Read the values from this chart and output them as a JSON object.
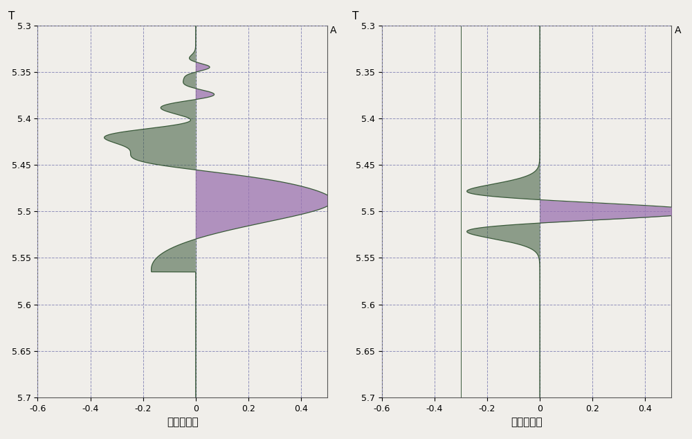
{
  "ylim": [
    5.3,
    5.7
  ],
  "xlim": [
    -0.6,
    0.5
  ],
  "yticks": [
    5.3,
    5.35,
    5.4,
    5.45,
    5.5,
    5.55,
    5.6,
    5.65,
    5.7
  ],
  "xticks": [
    -0.6,
    -0.4,
    -0.2,
    0.0,
    0.2,
    0.4
  ],
  "xtick_labels": [
    "-0.6",
    "-0.4",
    "-0.2",
    "0",
    "0.2",
    "0.4"
  ],
  "xlabel_left": "校正前波形",
  "xlabel_right": "校正后波形",
  "ylabel": "T",
  "x_unit": "A",
  "bg_color": "#f0eeea",
  "plot_bg": "#f0eeea",
  "line_color": "#3a5a3a",
  "fill_pos_color": "#9b72b0",
  "fill_neg_color": "#3a5a3a",
  "grid_color": "#9090bb",
  "grid_style": "--",
  "grid_linewidth": 0.7,
  "figsize": [
    10.0,
    6.34
  ],
  "dpi": 100
}
